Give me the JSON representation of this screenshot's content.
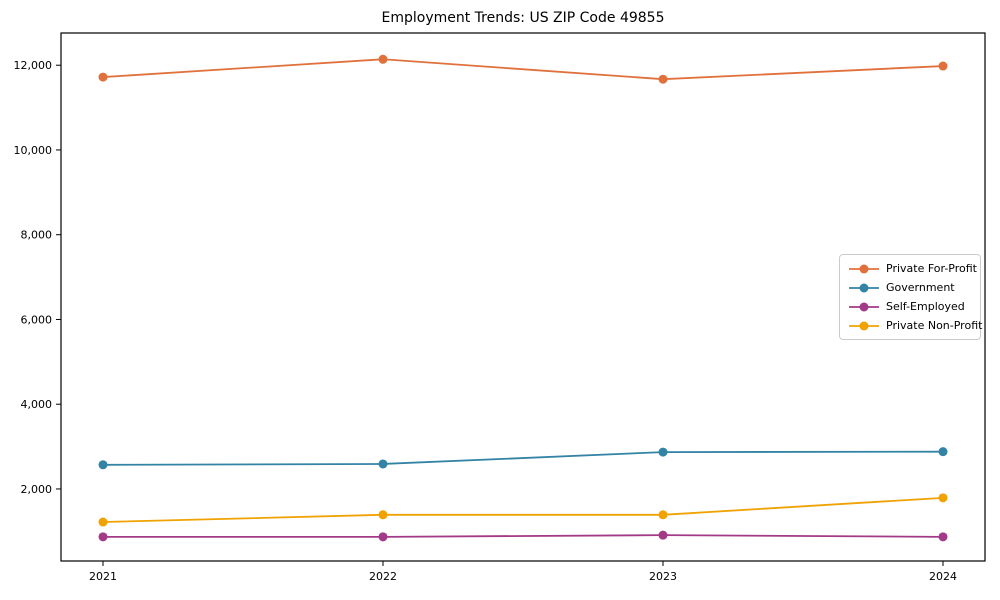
{
  "window": {
    "background": "#ffffff",
    "spine_color": "#000000",
    "legend_border_color": "#cccccc"
  },
  "chart_data": {
    "type": "line",
    "title": "Employment Trends: US ZIP Code 49855",
    "xlabel": "",
    "ylabel": "",
    "grid": false,
    "legend_position": "center-right",
    "x": [
      2021,
      2022,
      2023,
      2024
    ],
    "x_tick_labels": [
      "2021",
      "2022",
      "2023",
      "2024"
    ],
    "xlim": [
      2020.85,
      2024.15
    ],
    "ylim": [
      300,
      12760
    ],
    "y_tick_values": [
      2000,
      4000,
      6000,
      8000,
      10000,
      12000
    ],
    "y_tick_labels": [
      "2,000",
      "4,000",
      "6,000",
      "8,000",
      "10,000",
      "12,000"
    ],
    "series": [
      {
        "name": "Private For-Profit",
        "color": "#e0713c",
        "values": [
          11720,
          12140,
          11670,
          11980
        ]
      },
      {
        "name": "Government",
        "color": "#3383a5",
        "values": [
          2570,
          2590,
          2870,
          2880
        ]
      },
      {
        "name": "Self-Employed",
        "color": "#a23a87",
        "values": [
          870,
          870,
          910,
          870
        ]
      },
      {
        "name": "Private Non-Profit",
        "color": "#f0a202",
        "values": [
          1220,
          1390,
          1390,
          1790
        ]
      }
    ]
  }
}
